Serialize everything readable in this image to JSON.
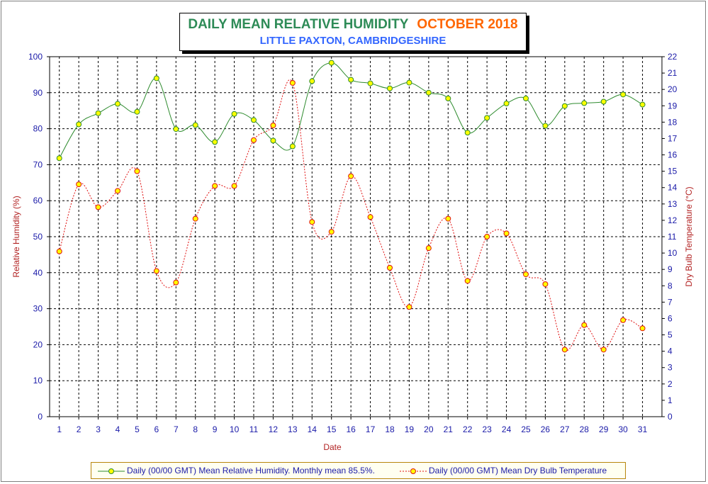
{
  "title": {
    "main": "DAILY MEAN RELATIVE HUMIDITY",
    "month": "OCTOBER 2018",
    "location": "LITTLE PAXTON, CAMBRIDGESHIRE"
  },
  "legend": {
    "humidity": "Daily (00/00 GMT) Mean Relative Humidity. Monthly mean 85.5%.",
    "temperature": "Daily (00/00 GMT) Mean Dry Bulb Temperature"
  },
  "colors": {
    "humidity_line": "#2e8b2e",
    "humidity_marker": "#ffff00",
    "temperature_line": "#e01010",
    "temperature_marker": "#ffff00",
    "tick_text": "#1a1aa8",
    "axis_label": "#b22222"
  },
  "chart_data": {
    "type": "line",
    "xlabel": "Date",
    "ylabel": "Relative Humidity (%)",
    "y2label": "Dry Bulb Temperature (°C)",
    "ylim": [
      0,
      100
    ],
    "y2lim": [
      0,
      22
    ],
    "yticks": [
      0,
      10,
      20,
      30,
      40,
      50,
      60,
      70,
      80,
      90,
      100
    ],
    "y2ticks": [
      0,
      1,
      2,
      3,
      4,
      5,
      6,
      7,
      8,
      9,
      10,
      11,
      12,
      13,
      14,
      15,
      16,
      17,
      18,
      19,
      20,
      21,
      22
    ],
    "grid": true,
    "legend_position": "bottom",
    "x": [
      1,
      2,
      3,
      4,
      5,
      6,
      7,
      8,
      9,
      10,
      11,
      12,
      13,
      14,
      15,
      16,
      17,
      18,
      19,
      20,
      21,
      22,
      23,
      24,
      25,
      26,
      27,
      28,
      29,
      30,
      31
    ],
    "series": [
      {
        "name": "Daily (00/00 GMT) Mean Relative Humidity. Monthly mean 85.5%.",
        "axis": "left",
        "style": "solid",
        "values": [
          71.8,
          81.2,
          84.3,
          86.9,
          84.7,
          94.0,
          79.9,
          81.0,
          76.3,
          84.1,
          82.4,
          76.7,
          75.1,
          93.2,
          98.3,
          93.6,
          92.6,
          91.2,
          92.8,
          90.0,
          88.4,
          78.9,
          83.0,
          87.0,
          88.4,
          80.8,
          86.3,
          87.1,
          87.5,
          89.5,
          86.7
        ]
      },
      {
        "name": "Daily (00/00 GMT) Mean Dry Bulb Temperature",
        "axis": "right",
        "style": "dotted",
        "values": [
          10.1,
          14.2,
          12.8,
          13.8,
          15.0,
          8.9,
          8.2,
          12.1,
          14.1,
          14.1,
          16.9,
          17.8,
          20.4,
          11.9,
          11.3,
          14.7,
          12.2,
          9.1,
          6.7,
          10.3,
          12.1,
          8.3,
          11.0,
          11.2,
          8.7,
          8.1,
          4.1,
          5.6,
          4.1,
          5.9,
          5.4
        ]
      }
    ]
  }
}
